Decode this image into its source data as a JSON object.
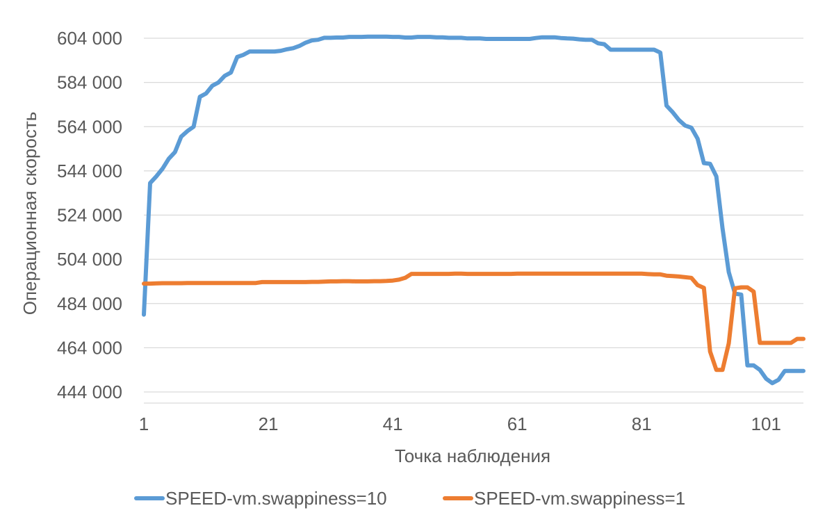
{
  "chart_data": {
    "type": "line",
    "title": "",
    "xlabel": "Точка наблюдения",
    "ylabel": "Операционная скорость",
    "ylim": [
      444000,
      612000
    ],
    "xlim": [
      1,
      107
    ],
    "y_ticks": [
      444000,
      464000,
      484000,
      504000,
      524000,
      544000,
      564000,
      584000,
      604000
    ],
    "y_tick_labels": [
      "444 000",
      "464 000",
      "484 000",
      "504 000",
      "524 000",
      "544 000",
      "564 000",
      "584 000",
      "604 000"
    ],
    "x_ticks": [
      1,
      21,
      41,
      61,
      81,
      101
    ],
    "x_tick_labels": [
      "1",
      "21",
      "41",
      "61",
      "81",
      "101"
    ],
    "grid": "horizontal",
    "legend_position": "bottom",
    "series": [
      {
        "name": "SPEED-vm.swappiness=10",
        "color": "#5b9bd5",
        "x": [
          1,
          2,
          3,
          4,
          5,
          6,
          7,
          8,
          9,
          10,
          11,
          12,
          13,
          14,
          15,
          16,
          17,
          18,
          19,
          20,
          21,
          22,
          23,
          24,
          25,
          26,
          27,
          28,
          29,
          30,
          31,
          32,
          33,
          34,
          35,
          36,
          37,
          38,
          39,
          40,
          41,
          42,
          43,
          44,
          45,
          46,
          47,
          48,
          49,
          50,
          51,
          52,
          53,
          54,
          55,
          56,
          57,
          58,
          59,
          60,
          61,
          62,
          63,
          64,
          65,
          66,
          67,
          68,
          69,
          70,
          71,
          72,
          73,
          74,
          75,
          76,
          77,
          78,
          79,
          80,
          81,
          82,
          83,
          84,
          85,
          86,
          87,
          88,
          89,
          90,
          91,
          92,
          93,
          94,
          95,
          96,
          97,
          98,
          99,
          100,
          101,
          102,
          103,
          104,
          105,
          106,
          107
        ],
        "values": [
          479000,
          538500,
          541500,
          545000,
          549500,
          552500,
          559500,
          562000,
          564000,
          577500,
          579000,
          582500,
          584000,
          587000,
          588500,
          595500,
          596500,
          598000,
          598000,
          598000,
          598000,
          598000,
          598300,
          599000,
          599500,
          600500,
          602000,
          603000,
          603300,
          604200,
          604200,
          604300,
          604300,
          604600,
          604600,
          604600,
          604700,
          604700,
          604700,
          604700,
          604600,
          604600,
          604300,
          604300,
          604600,
          604600,
          604600,
          604400,
          604400,
          604200,
          604200,
          604200,
          603900,
          603900,
          603900,
          603700,
          603700,
          603700,
          603700,
          603700,
          603700,
          603700,
          603700,
          604100,
          604400,
          604400,
          604400,
          604100,
          603900,
          603800,
          603500,
          603300,
          603300,
          601700,
          601300,
          598800,
          598800,
          598800,
          598800,
          598800,
          598800,
          598800,
          598800,
          597500,
          573500,
          570500,
          567000,
          564500,
          563500,
          558500,
          547500,
          547200,
          541500,
          518000,
          498200,
          488500,
          488000,
          456000,
          456000,
          454000,
          450000,
          448000,
          449500,
          453500,
          453500,
          453500,
          453500
        ]
      },
      {
        "name": "SPEED-vm.swappiness=1",
        "color": "#ed7d31",
        "x": [
          1,
          2,
          3,
          4,
          5,
          6,
          7,
          8,
          9,
          10,
          11,
          12,
          13,
          14,
          15,
          16,
          17,
          18,
          19,
          20,
          21,
          22,
          23,
          24,
          25,
          26,
          27,
          28,
          29,
          30,
          31,
          32,
          33,
          34,
          35,
          36,
          37,
          38,
          39,
          40,
          41,
          42,
          43,
          44,
          45,
          46,
          47,
          48,
          49,
          50,
          51,
          52,
          53,
          54,
          55,
          56,
          57,
          58,
          59,
          60,
          61,
          62,
          63,
          64,
          65,
          66,
          67,
          68,
          69,
          70,
          71,
          72,
          73,
          74,
          75,
          76,
          77,
          78,
          79,
          80,
          81,
          82,
          83,
          84,
          85,
          86,
          87,
          88,
          89,
          90,
          91,
          92,
          93,
          94,
          95,
          96,
          97,
          98,
          99,
          100,
          101,
          102,
          103,
          104,
          105,
          106,
          107
        ],
        "values": [
          493000,
          493000,
          493100,
          493200,
          493200,
          493200,
          493200,
          493300,
          493300,
          493300,
          493300,
          493300,
          493300,
          493300,
          493300,
          493300,
          493300,
          493300,
          493300,
          493700,
          493700,
          493700,
          493700,
          493700,
          493700,
          493700,
          493700,
          493800,
          493800,
          493900,
          494000,
          494000,
          494100,
          494100,
          494000,
          494000,
          494000,
          494100,
          494100,
          494200,
          494400,
          494800,
          495600,
          497400,
          497400,
          497400,
          497400,
          497400,
          497400,
          497400,
          497500,
          497500,
          497400,
          497400,
          497400,
          497400,
          497400,
          497400,
          497400,
          497400,
          497500,
          497500,
          497500,
          497500,
          497500,
          497500,
          497500,
          497500,
          497500,
          497500,
          497500,
          497500,
          497500,
          497500,
          497500,
          497500,
          497500,
          497500,
          497500,
          497500,
          497500,
          497300,
          497200,
          497200,
          496600,
          496400,
          496200,
          495900,
          495600,
          492300,
          491100,
          462300,
          454000,
          454000,
          466000,
          490900,
          491300,
          491300,
          489400,
          466200,
          466200,
          466200,
          466200,
          466200,
          466200,
          468000,
          468000
        ]
      }
    ]
  }
}
